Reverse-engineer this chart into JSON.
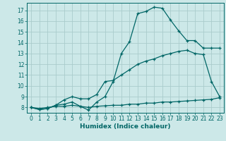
{
  "xlabel": "Humidex (Indice chaleur)",
  "ylabel": "",
  "bg_color": "#cce8e8",
  "grid_color": "#aacccc",
  "line_color": "#006666",
  "xlim": [
    -0.5,
    23.5
  ],
  "ylim": [
    7.5,
    17.7
  ],
  "xticks": [
    0,
    1,
    2,
    3,
    4,
    5,
    6,
    7,
    8,
    9,
    10,
    11,
    12,
    13,
    14,
    15,
    16,
    17,
    18,
    19,
    20,
    21,
    22,
    23
  ],
  "yticks": [
    8,
    9,
    10,
    11,
    12,
    13,
    14,
    15,
    16,
    17
  ],
  "line1_x": [
    0,
    1,
    2,
    3,
    4,
    5,
    6,
    7,
    8,
    9,
    10,
    11,
    12,
    13,
    14,
    15,
    16,
    17,
    18,
    19,
    20,
    21,
    22,
    23
  ],
  "line1_y": [
    8.0,
    7.8,
    7.9,
    8.2,
    8.3,
    8.5,
    8.1,
    7.75,
    8.5,
    9.0,
    10.4,
    13.0,
    14.1,
    16.7,
    16.9,
    17.3,
    17.2,
    16.1,
    15.1,
    14.2,
    14.2,
    13.5,
    13.5,
    13.5
  ],
  "line2_x": [
    0,
    1,
    2,
    3,
    4,
    5,
    6,
    7,
    8,
    9,
    10,
    11,
    12,
    13,
    14,
    15,
    16,
    17,
    18,
    19,
    20,
    21,
    22,
    23
  ],
  "line2_y": [
    8.0,
    7.8,
    7.9,
    8.2,
    8.7,
    9.0,
    8.8,
    8.8,
    9.2,
    10.4,
    10.5,
    11.0,
    11.5,
    12.0,
    12.3,
    12.5,
    12.8,
    13.0,
    13.2,
    13.3,
    13.0,
    12.9,
    10.4,
    9.0
  ],
  "line3_x": [
    0,
    1,
    2,
    3,
    4,
    5,
    6,
    7,
    8,
    9,
    10,
    11,
    12,
    13,
    14,
    15,
    16,
    17,
    18,
    19,
    20,
    21,
    22,
    23
  ],
  "line3_y": [
    8.0,
    7.9,
    8.0,
    8.1,
    8.1,
    8.2,
    8.1,
    8.0,
    8.1,
    8.15,
    8.2,
    8.2,
    8.3,
    8.3,
    8.4,
    8.4,
    8.5,
    8.5,
    8.55,
    8.6,
    8.65,
    8.7,
    8.75,
    8.9
  ],
  "tick_fontsize": 5.5,
  "xlabel_fontsize": 6.5
}
